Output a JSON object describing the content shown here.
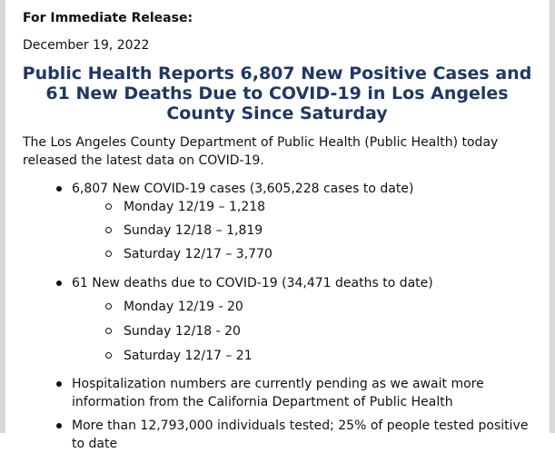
{
  "release_label": "For Immediate Release:",
  "date": "December 19, 2022",
  "headline": "Public Health Reports 6,807 New Positive Cases and 61 New Deaths Due to COVID-19 in Los Angeles County Since Saturday",
  "intro": "The Los Angeles County Department of Public Health (Public Health) today released the latest data on COVID-19.",
  "colors": {
    "headline": "#1f3864",
    "frame": "#d9d9d9"
  },
  "bullets": [
    {
      "text": "6,807 New COVID-19 cases (3,605,228 cases to date)",
      "sub": [
        "Monday 12/19 – 1,218",
        "Sunday 12/18 – 1,819",
        "Saturday 12/17 – 3,770"
      ]
    },
    {
      "text": "61 New deaths due to COVID-19 (34,471 deaths to date)",
      "sub": [
        "Monday 12/19 - 20",
        "Sunday 12/18 - 20",
        "Saturday 12/17 – 21"
      ]
    },
    {
      "text": "Hospitalization numbers are currently pending as we await more information from the California Department of Public Health",
      "sub": []
    },
    {
      "text": "More than 12,793,000 individuals tested; 25% of people tested positive to date",
      "sub": []
    }
  ]
}
